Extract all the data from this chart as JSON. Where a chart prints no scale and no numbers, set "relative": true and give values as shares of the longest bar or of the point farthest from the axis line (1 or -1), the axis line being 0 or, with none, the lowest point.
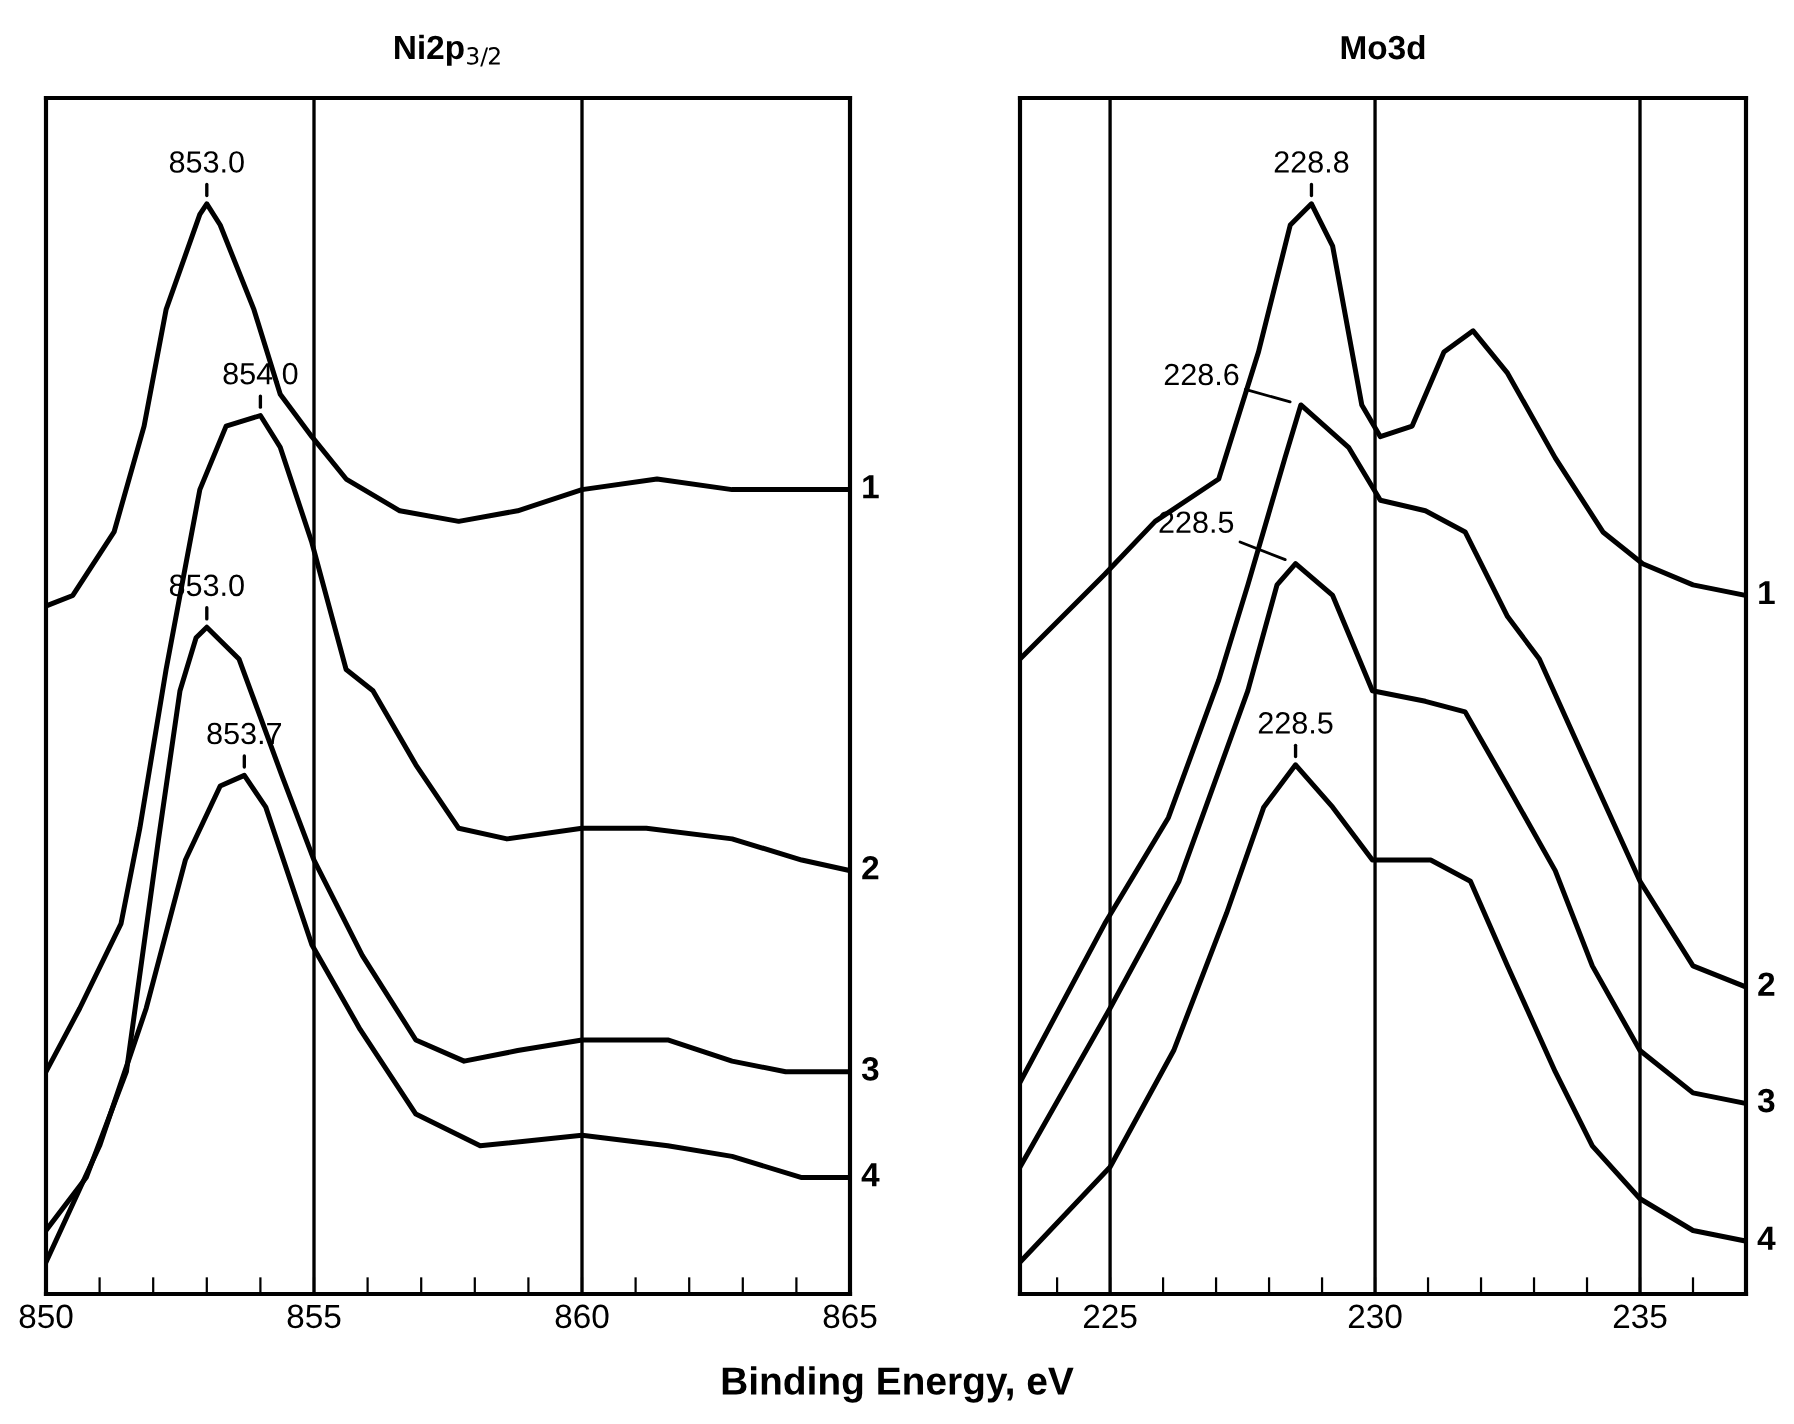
{
  "chart_data": [
    {
      "type": "line",
      "title": "Ni2p$_{3/2}$",
      "xlabel": "Binding Energy, eV",
      "relative": true,
      "marker": "none",
      "line_style": "solid",
      "legend": false,
      "tick_labels": "x",
      "xlim": [
        850,
        865
      ],
      "xticks": [
        850,
        {
          "value": 851,
          "label": null
        },
        {
          "value": 852,
          "label": null
        },
        {
          "value": 853,
          "label": null
        },
        {
          "value": 854,
          "label": null
        },
        855,
        {
          "value": 856,
          "label": null
        },
        {
          "value": 857,
          "label": null
        },
        {
          "value": 858,
          "label": null
        },
        {
          "value": 859,
          "label": null
        },
        860,
        {
          "value": 861,
          "label": null
        },
        {
          "value": 862,
          "label": null
        },
        {
          "value": 863,
          "label": null
        },
        {
          "value": 864,
          "label": null
        },
        865
      ],
      "ref_lines": [
        {
          "axis": "x",
          "value": 855,
          "color": "#000000"
        },
        {
          "axis": "x",
          "value": 860,
          "color": "#000000"
        }
      ],
      "series": [
        {
          "name": "1",
          "color": "#000000",
          "x": [
            850,
            850.5,
            851.27,
            851.83,
            852.24,
            852.87,
            853.0,
            853.25,
            853.88,
            854.37,
            854.96,
            855.6,
            856.6,
            857.7,
            858.8,
            860.0,
            861.4,
            862.8,
            864.1,
            865
          ],
          "values": [
            0.62,
            0.63,
            0.69,
            0.79,
            0.9,
            0.99,
            1.0,
            0.98,
            0.9,
            0.82,
            0.78,
            0.74,
            0.71,
            0.7,
            0.71,
            0.73,
            0.74,
            0.73,
            0.73,
            0.73
          ]
        },
        {
          "name": "2",
          "color": "#000000",
          "x": [
            850,
            850.63,
            851.4,
            851.75,
            852.24,
            852.87,
            853.36,
            854.0,
            854.37,
            854.96,
            855.6,
            856.1,
            856.9,
            857.7,
            858.6,
            860.0,
            861.2,
            862.8,
            864.1,
            865
          ],
          "values": [
            0.18,
            0.24,
            0.32,
            0.41,
            0.56,
            0.73,
            0.79,
            0.8,
            0.77,
            0.68,
            0.56,
            0.54,
            0.47,
            0.41,
            0.4,
            0.41,
            0.41,
            0.4,
            0.38,
            0.37
          ]
        },
        {
          "name": "3",
          "color": "#000000",
          "x": [
            850,
            850.75,
            851.5,
            852.1,
            852.5,
            852.8,
            853.0,
            853.6,
            854.4,
            855.0,
            855.9,
            856.9,
            857.8,
            858.8,
            860,
            861.6,
            862.8,
            863.8,
            865
          ],
          "values": [
            0.03,
            0.08,
            0.18,
            0.4,
            0.54,
            0.59,
            0.6,
            0.57,
            0.46,
            0.38,
            0.29,
            0.21,
            0.19,
            0.2,
            0.21,
            0.21,
            0.19,
            0.18,
            0.18
          ]
        },
        {
          "name": "4",
          "color": "#000000",
          "x": [
            850,
            851.0,
            851.87,
            852.6,
            853.25,
            853.7,
            854.1,
            854.96,
            855.86,
            856.9,
            858.1,
            860,
            861.6,
            862.8,
            864.1,
            865
          ],
          "values": [
            0.0,
            0.11,
            0.24,
            0.38,
            0.45,
            0.46,
            0.43,
            0.3,
            0.22,
            0.14,
            0.11,
            0.12,
            0.11,
            0.1,
            0.08,
            0.08
          ]
        }
      ],
      "annotations": [
        {
          "text": "853.0",
          "x": 853.0,
          "y": 1.0
        },
        {
          "text": "854.0",
          "x": 854.0,
          "y": 0.8
        },
        {
          "text": "853.0",
          "x": 853.0,
          "y": 0.6
        },
        {
          "text": "853.7",
          "x": 853.7,
          "y": 0.46
        }
      ]
    },
    {
      "type": "line",
      "title": "Mo3d",
      "relative": true,
      "marker": "none",
      "line_style": "solid",
      "legend": false,
      "tick_labels": "x",
      "xlim": [
        223.3,
        237.0
      ],
      "xticks": [
        {
          "value": 224,
          "label": null
        },
        225,
        {
          "value": 226,
          "label": null
        },
        {
          "value": 227,
          "label": null
        },
        {
          "value": 228,
          "label": null
        },
        {
          "value": 229,
          "label": null
        },
        230,
        {
          "value": 231,
          "label": null
        },
        {
          "value": 232,
          "label": null
        },
        {
          "value": 233,
          "label": null
        },
        {
          "value": 234,
          "label": null
        },
        235,
        {
          "value": 236,
          "label": null
        }
      ],
      "ref_lines": [
        {
          "axis": "x",
          "value": 225,
          "color": "#000000"
        },
        {
          "axis": "x",
          "value": 230,
          "color": "#000000"
        },
        {
          "axis": "x",
          "value": 235,
          "color": "#000000"
        }
      ],
      "series": [
        {
          "name": "1",
          "color": "#000000",
          "x": [
            223.3,
            224.9,
            225.85,
            227.05,
            227.8,
            228.4,
            228.8,
            229.2,
            229.75,
            230.1,
            230.7,
            231.3,
            231.85,
            232.5,
            233.4,
            234.3,
            235.05,
            236.0,
            237.0
          ],
          "values": [
            0.57,
            0.65,
            0.7,
            0.74,
            0.86,
            0.98,
            1.0,
            0.96,
            0.81,
            0.78,
            0.79,
            0.86,
            0.88,
            0.84,
            0.76,
            0.69,
            0.66,
            0.64,
            0.63
          ]
        },
        {
          "name": "2",
          "color": "#000000",
          "x": [
            223.3,
            224.9,
            226.1,
            227.05,
            227.6,
            228.3,
            228.6,
            229.5,
            230.1,
            230.95,
            231.7,
            232.5,
            233.1,
            234.0,
            235.0,
            236.0,
            237.0
          ],
          "values": [
            0.17,
            0.32,
            0.42,
            0.55,
            0.64,
            0.76,
            0.81,
            0.77,
            0.72,
            0.71,
            0.69,
            0.61,
            0.57,
            0.47,
            0.36,
            0.28,
            0.26
          ]
        },
        {
          "name": "3",
          "color": "#000000",
          "x": [
            223.3,
            225.0,
            226.3,
            227.6,
            228.15,
            228.5,
            229.2,
            229.95,
            230.95,
            231.7,
            232.5,
            233.4,
            234.1,
            235.0,
            236.0,
            237.0
          ],
          "values": [
            0.09,
            0.24,
            0.36,
            0.54,
            0.64,
            0.66,
            0.63,
            0.54,
            0.53,
            0.52,
            0.45,
            0.37,
            0.28,
            0.2,
            0.16,
            0.15
          ]
        },
        {
          "name": "4",
          "color": "#000000",
          "x": [
            223.3,
            225.0,
            226.2,
            227.2,
            227.9,
            228.5,
            229.2,
            229.95,
            231.05,
            231.8,
            232.5,
            233.4,
            234.1,
            235.0,
            236.0,
            237.0
          ],
          "values": [
            0.0,
            0.09,
            0.2,
            0.33,
            0.43,
            0.47,
            0.43,
            0.38,
            0.38,
            0.36,
            0.28,
            0.18,
            0.11,
            0.06,
            0.03,
            0.02
          ]
        }
      ],
      "annotations": [
        {
          "text": "228.8",
          "x": 228.8,
          "y": 1.0
        },
        {
          "text": "228.6",
          "x": 228.6,
          "y": 0.81
        },
        {
          "text": "228.5",
          "x": 228.5,
          "y": 0.66
        },
        {
          "text": "228.5",
          "x": 228.5,
          "y": 0.47
        }
      ]
    }
  ]
}
